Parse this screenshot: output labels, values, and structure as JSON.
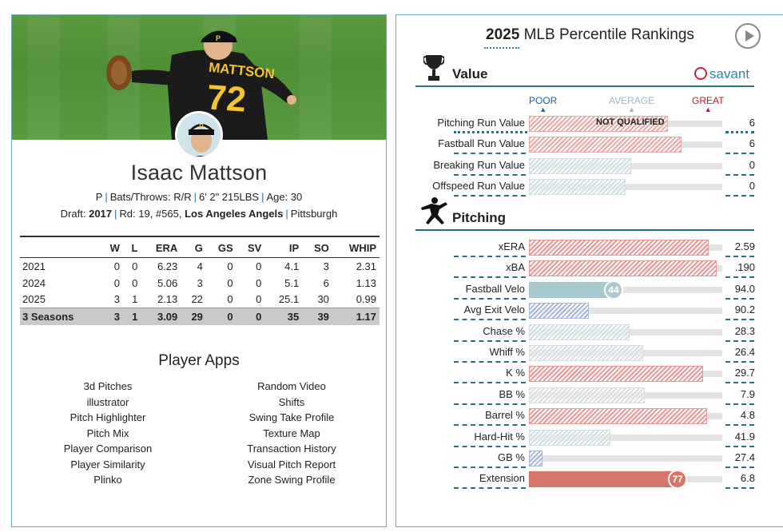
{
  "left": {
    "player_name": "Isaac Mattson",
    "bio": {
      "position": "P",
      "bats_throws": "Bats/Throws: R/R",
      "height_weight": "6' 2\" 215LBS",
      "age": "Age: 30"
    },
    "draft": {
      "prefix": "Draft:",
      "year": "2017",
      "round": "Rd: 19, #565,",
      "team": "Los Angeles Angels",
      "school": "Pittsburgh"
    },
    "jersey_name": "MATTSON",
    "jersey_number": "72",
    "stats": {
      "headers": [
        "",
        "W",
        "L",
        "ERA",
        "G",
        "GS",
        "SV",
        "IP",
        "SO",
        "WHIP"
      ],
      "rows": [
        [
          "2021",
          "0",
          "0",
          "6.23",
          "4",
          "0",
          "0",
          "4.1",
          "3",
          "2.31"
        ],
        [
          "2024",
          "0",
          "0",
          "5.06",
          "3",
          "0",
          "0",
          "5.1",
          "6",
          "1.13"
        ],
        [
          "2025",
          "3",
          "1",
          "2.13",
          "22",
          "0",
          "0",
          "25.1",
          "30",
          "0.99"
        ]
      ],
      "total": [
        "3 Seasons",
        "3",
        "1",
        "3.09",
        "29",
        "0",
        "0",
        "35",
        "39",
        "1.17"
      ]
    },
    "apps_title": "Player Apps",
    "apps_left": [
      "3d Pitches",
      "illustrator",
      "Pitch Highlighter",
      "Pitch Mix",
      "Player Comparison",
      "Player Similarity",
      "Plinko"
    ],
    "apps_right": [
      "Random Video",
      "Shifts",
      "Swing Take Profile",
      "Texture Map",
      "Transaction History",
      "Visual Pitch Report",
      "Zone Swing Profile"
    ]
  },
  "right": {
    "title_year": "2025",
    "title_rest": "MLB Percentile Rankings",
    "savant_label": "savant",
    "scale": {
      "poor": "POOR",
      "average": "AVERAGE",
      "great": "GREAT"
    },
    "colors": {
      "poor": "#1f5fa8",
      "average": "#9ab8c2",
      "great": "#c0182a",
      "accent": "#2b6f82"
    },
    "value_section": {
      "label": "Value",
      "rows": [
        {
          "label": "Pitching Run Value",
          "value": "6",
          "pct": 72,
          "color": "#e8aaa8",
          "hatched": true,
          "note": "NOT QUALIFIED"
        },
        {
          "label": "Fastball Run Value",
          "value": "6",
          "pct": 79,
          "color": "#e8aaa8",
          "hatched": true
        },
        {
          "label": "Breaking Run Value",
          "value": "0",
          "pct": 53,
          "color": "#cfe0e3",
          "hatched": true
        },
        {
          "label": "Offspeed Run Value",
          "value": "0",
          "pct": 50,
          "color": "#cfe0e3",
          "hatched": true
        }
      ]
    },
    "pitching_section": {
      "label": "Pitching",
      "rows": [
        {
          "label": "xERA",
          "value": "2.59",
          "pct": 93,
          "color": "#e39a98",
          "hatched": true
        },
        {
          "label": "xBA",
          "value": ".190",
          "pct": 97,
          "color": "#e39a98",
          "hatched": true
        },
        {
          "label": "Fastball Velo",
          "value": "94.0",
          "pct": 44,
          "color": "#a9c8cf",
          "hatched": false,
          "badge": "44"
        },
        {
          "label": "Avg Exit Velo",
          "value": "90.2",
          "pct": 31,
          "color": "#a9b7d9",
          "hatched": true
        },
        {
          "label": "Chase %",
          "value": "28.3",
          "pct": 52,
          "color": "#cfe0e3",
          "hatched": true
        },
        {
          "label": "Whiff %",
          "value": "26.4",
          "pct": 59,
          "color": "#d7dde0",
          "hatched": true
        },
        {
          "label": "K %",
          "value": "29.7",
          "pct": 90,
          "color": "#e39a98",
          "hatched": true
        },
        {
          "label": "BB %",
          "value": "7.9",
          "pct": 60,
          "color": "#d7dde0",
          "hatched": true
        },
        {
          "label": "Barrel %",
          "value": "4.8",
          "pct": 92,
          "color": "#e39a98",
          "hatched": true
        },
        {
          "label": "Hard-Hit %",
          "value": "41.9",
          "pct": 42,
          "color": "#cfe0e3",
          "hatched": true
        },
        {
          "label": "GB %",
          "value": "27.4",
          "pct": 7,
          "color": "#a9b7d9",
          "hatched": true
        },
        {
          "label": "Extension",
          "value": "6.8",
          "pct": 77,
          "color": "#d87468",
          "hatched": false,
          "badge": "77"
        }
      ]
    }
  }
}
